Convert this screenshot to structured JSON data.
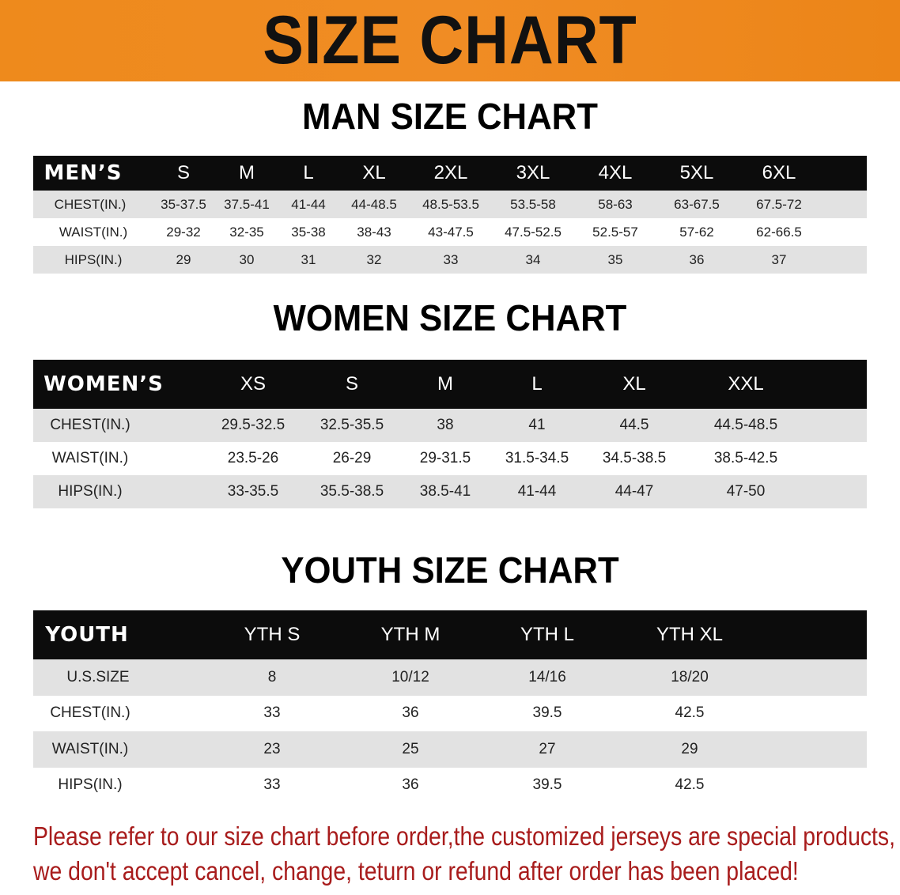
{
  "banner": {
    "title": "SIZE CHART",
    "color": "#ee8a1c"
  },
  "men": {
    "title": "MAN SIZE CHART",
    "header": [
      "MEN’S",
      "S",
      "M",
      "L",
      "XL",
      "2XL",
      "3XL",
      "4XL",
      "5XL",
      "6XL"
    ],
    "rows": [
      [
        "CHEST(IN.)",
        "35-37.5",
        "37.5-41",
        "41-44",
        "44-48.5",
        "48.5-53.5",
        "53.5-58",
        "58-63",
        "63-67.5",
        "67.5-72"
      ],
      [
        "WAIST(IN.)",
        "29-32",
        "32-35",
        "35-38",
        "38-43",
        "43-47.5",
        "47.5-52.5",
        "52.5-57",
        "57-62",
        "62-66.5"
      ],
      [
        "HIPS(IN.)",
        "29",
        "30",
        "31",
        "32",
        "33",
        "34",
        "35",
        "36",
        "37"
      ]
    ]
  },
  "women": {
    "title": "WOMEN SIZE CHART",
    "header": [
      "WOMEN’S",
      "XS",
      "S",
      "M",
      "L",
      "XL",
      "XXL"
    ],
    "rows": [
      [
        "CHEST(IN.)",
        "29.5-32.5",
        "32.5-35.5",
        "38",
        "41",
        "44.5",
        "44.5-48.5"
      ],
      [
        "WAIST(IN.)",
        "23.5-26",
        "26-29",
        "29-31.5",
        "31.5-34.5",
        "34.5-38.5",
        "38.5-42.5"
      ],
      [
        "HIPS(IN.)",
        "33-35.5",
        "35.5-38.5",
        "38.5-41",
        "41-44",
        "44-47",
        "47-50"
      ]
    ]
  },
  "youth": {
    "title": "YOUTH SIZE CHART",
    "header": [
      "YOUTH",
      "YTH S",
      "YTH M",
      "YTH L",
      "YTH XL"
    ],
    "rows": [
      [
        "U.S.SIZE",
        "8",
        "10/12",
        "14/16",
        "18/20"
      ],
      [
        "CHEST(IN.)",
        "33",
        "36",
        "39.5",
        "42.5"
      ],
      [
        "WAIST(IN.)",
        "23",
        "25",
        "27",
        "29"
      ],
      [
        "HIPS(IN.)",
        "33",
        "36",
        "39.5",
        "42.5"
      ]
    ]
  },
  "footer": {
    "line1": "Please refer to our size chart before order,the customized jerseys are special products,",
    "line2": "we don't accept cancel, change, teturn or refund after order has been placed!",
    "color": "#a81c1c"
  }
}
